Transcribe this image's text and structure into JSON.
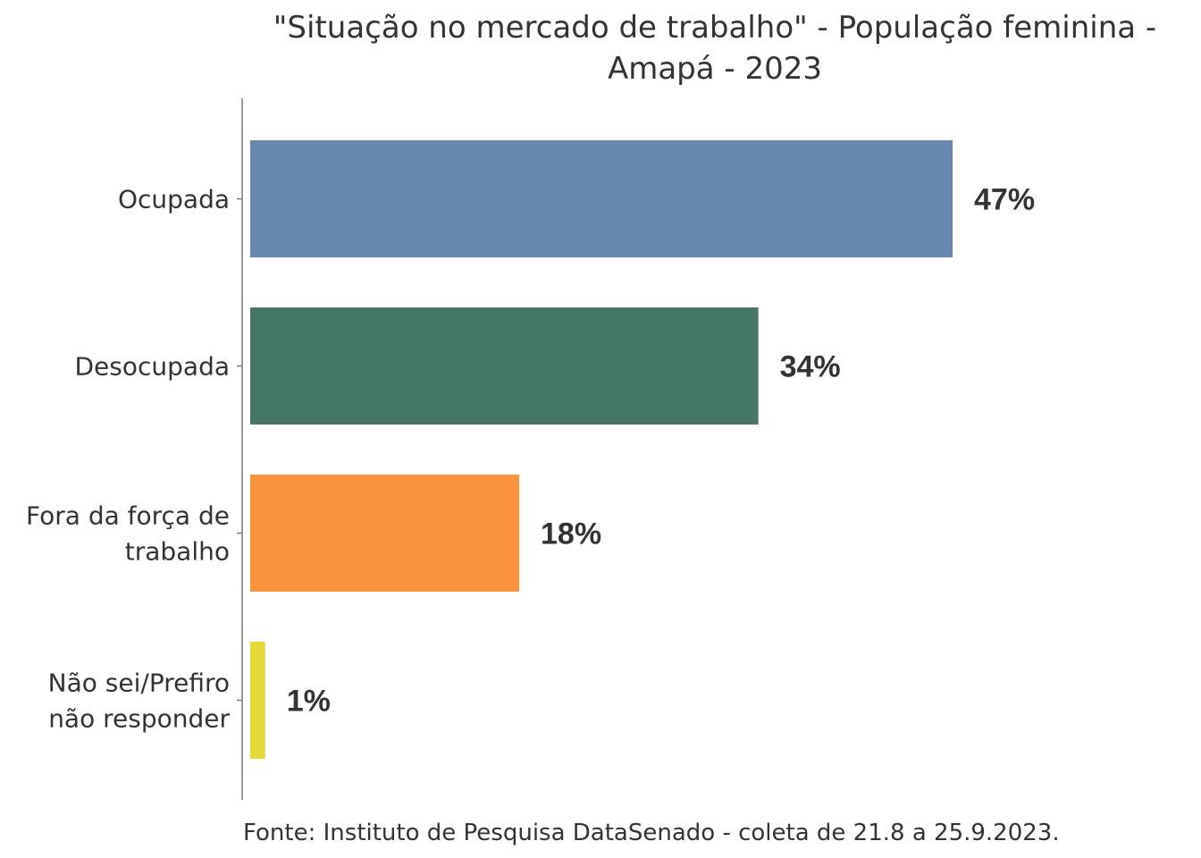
{
  "chart_data": {
    "type": "bar",
    "orientation": "horizontal",
    "title": "\"Situação no mercado de trabalho\" - População feminina - Amapá - 2023",
    "title_lines": [
      "\"Situação no mercado de trabalho\" - População feminina -",
      "Amapá - 2023"
    ],
    "categories": [
      "Ocupada",
      "Desocupada",
      "Fora da força de trabalho",
      "Não sei/Prefiro não responder"
    ],
    "category_lines": [
      [
        "Ocupada"
      ],
      [
        "Desocupada"
      ],
      [
        "Fora da força de",
        "trabalho"
      ],
      [
        "Não sei/Prefiro",
        "não responder"
      ]
    ],
    "values": [
      47,
      34,
      18,
      1
    ],
    "labels": [
      "47%",
      "34%",
      "18%",
      "1%"
    ],
    "colors": [
      "#6688b0",
      "#457563",
      "#fb923c",
      "#e5d835"
    ],
    "xlabel": "",
    "ylabel": "",
    "xlim": [
      0,
      52
    ],
    "grid": false,
    "source": "Fonte: Instituto de Pesquisa DataSenado - coleta de 21.8 a 25.9.2023."
  }
}
